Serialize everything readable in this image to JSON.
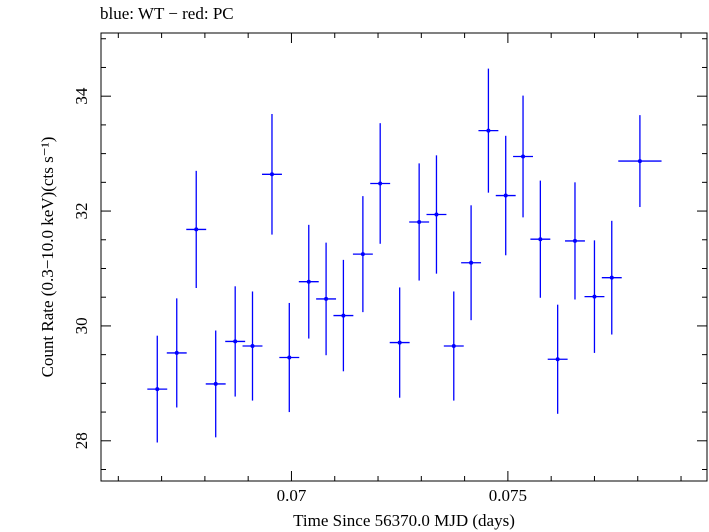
{
  "chart_data": {
    "type": "scatter",
    "title": "blue: WT − red: PC",
    "xlabel": "Time Since 56370.0 MJD (days)",
    "ylabel": "Count Rate (0.3−10.0 keV)(cts s⁻¹)",
    "xlim": [
      0.0656,
      0.0796
    ],
    "ylim": [
      27.3,
      35.1
    ],
    "x_ticks": [
      0.07,
      0.075
    ],
    "x_tick_labels": [
      "0.07",
      "0.075"
    ],
    "y_ticks": [
      28,
      30,
      32,
      34
    ],
    "y_tick_labels": [
      "28",
      "30",
      "32",
      "34"
    ],
    "grid": false,
    "series": [
      {
        "color": "#0000ff",
        "points": [
          {
            "x": 0.0669,
            "xerr": 0.00023,
            "y": 28.9,
            "yerr": 0.93
          },
          {
            "x": 0.06735,
            "xerr": 0.00023,
            "y": 29.53,
            "yerr": 0.95
          },
          {
            "x": 0.0678,
            "xerr": 0.00023,
            "y": 31.68,
            "yerr": 1.02
          },
          {
            "x": 0.06825,
            "xerr": 0.00023,
            "y": 28.99,
            "yerr": 0.93
          },
          {
            "x": 0.0687,
            "xerr": 0.00023,
            "y": 29.73,
            "yerr": 0.96
          },
          {
            "x": 0.0691,
            "xerr": 0.00023,
            "y": 29.65,
            "yerr": 0.95
          },
          {
            "x": 0.06955,
            "xerr": 0.00023,
            "y": 32.64,
            "yerr": 1.05
          },
          {
            "x": 0.06995,
            "xerr": 0.00023,
            "y": 29.45,
            "yerr": 0.95
          },
          {
            "x": 0.0704,
            "xerr": 0.00023,
            "y": 30.77,
            "yerr": 0.99
          },
          {
            "x": 0.0708,
            "xerr": 0.00023,
            "y": 30.47,
            "yerr": 0.98
          },
          {
            "x": 0.0712,
            "xerr": 0.00023,
            "y": 30.18,
            "yerr": 0.97
          },
          {
            "x": 0.07165,
            "xerr": 0.00023,
            "y": 31.25,
            "yerr": 1.01
          },
          {
            "x": 0.07205,
            "xerr": 0.00023,
            "y": 32.48,
            "yerr": 1.05
          },
          {
            "x": 0.0725,
            "xerr": 0.00023,
            "y": 29.71,
            "yerr": 0.96
          },
          {
            "x": 0.07295,
            "xerr": 0.00023,
            "y": 31.81,
            "yerr": 1.02
          },
          {
            "x": 0.07335,
            "xerr": 0.00023,
            "y": 31.94,
            "yerr": 1.03
          },
          {
            "x": 0.07375,
            "xerr": 0.00023,
            "y": 29.65,
            "yerr": 0.95
          },
          {
            "x": 0.07415,
            "xerr": 0.00023,
            "y": 31.1,
            "yerr": 1.0
          },
          {
            "x": 0.07455,
            "xerr": 0.00023,
            "y": 33.4,
            "yerr": 1.08
          },
          {
            "x": 0.07495,
            "xerr": 0.00023,
            "y": 32.27,
            "yerr": 1.04
          },
          {
            "x": 0.07535,
            "xerr": 0.00023,
            "y": 32.95,
            "yerr": 1.06
          },
          {
            "x": 0.07575,
            "xerr": 0.00023,
            "y": 31.51,
            "yerr": 1.02
          },
          {
            "x": 0.07615,
            "xerr": 0.00023,
            "y": 29.42,
            "yerr": 0.95
          },
          {
            "x": 0.07655,
            "xerr": 0.00023,
            "y": 31.48,
            "yerr": 1.02
          },
          {
            "x": 0.077,
            "xerr": 0.00023,
            "y": 30.51,
            "yerr": 0.98
          },
          {
            "x": 0.0774,
            "xerr": 0.00023,
            "y": 30.84,
            "yerr": 0.99
          },
          {
            "x": 0.07805,
            "xerr": 0.0005,
            "y": 32.87,
            "yerr": 0.8
          }
        ]
      }
    ]
  }
}
